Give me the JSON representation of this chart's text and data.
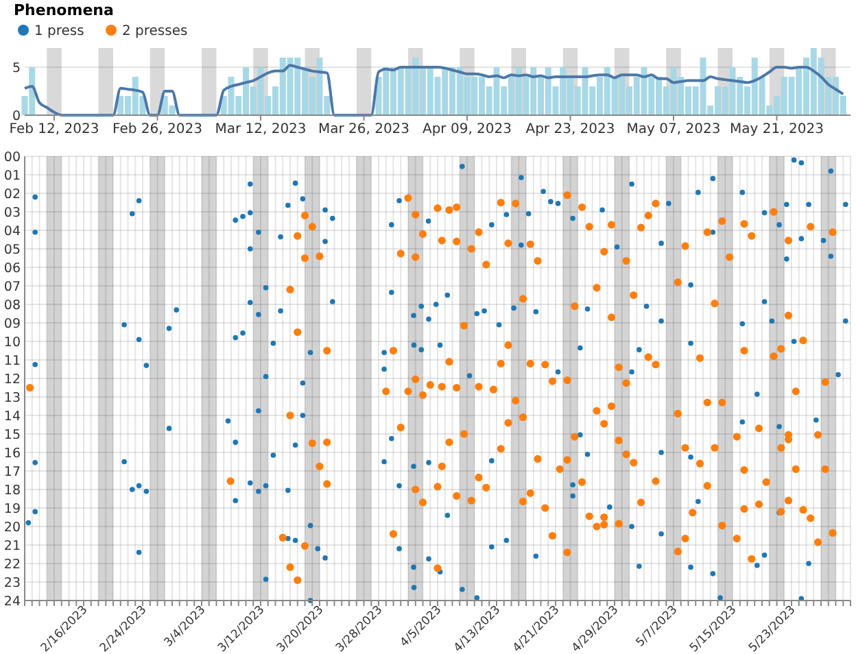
{
  "chart_data": [
    {
      "type": "bar",
      "xlim": [
        "2023-02-08",
        "2023-05-31"
      ],
      "ylim": [
        0,
        7
      ],
      "yticks": [
        0,
        5
      ],
      "grid": "y",
      "xticks": [
        {
          "value": "2023-02-12",
          "label": "Feb 12, 2023"
        },
        {
          "value": "2023-02-26",
          "label": "Feb 26, 2023"
        },
        {
          "value": "2023-03-12",
          "label": "Mar 12, 2023"
        },
        {
          "value": "2023-03-26",
          "label": "Mar 26, 2023"
        },
        {
          "value": "2023-04-09",
          "label": "Apr 09, 2023"
        },
        {
          "value": "2023-04-23",
          "label": "Apr 23, 2023"
        },
        {
          "value": "2023-05-07",
          "label": "May 07, 2023"
        },
        {
          "value": "2023-05-21",
          "label": "May 21, 2023"
        }
      ],
      "bands": [
        {
          "axis": "x",
          "from": "2023-02-11",
          "to": "2023-02-13",
          "color": "#d9d9d9"
        },
        {
          "axis": "x",
          "from": "2023-02-18",
          "to": "2023-02-20",
          "color": "#d9d9d9"
        },
        {
          "axis": "x",
          "from": "2023-02-25",
          "to": "2023-02-27",
          "color": "#d9d9d9"
        },
        {
          "axis": "x",
          "from": "2023-03-04",
          "to": "2023-03-06",
          "color": "#d9d9d9"
        },
        {
          "axis": "x",
          "from": "2023-03-11",
          "to": "2023-03-13",
          "color": "#d9d9d9"
        },
        {
          "axis": "x",
          "from": "2023-03-18",
          "to": "2023-03-20",
          "color": "#d9d9d9"
        },
        {
          "axis": "x",
          "from": "2023-03-25",
          "to": "2023-03-27",
          "color": "#d9d9d9"
        },
        {
          "axis": "x",
          "from": "2023-04-01",
          "to": "2023-04-03",
          "color": "#d9d9d9"
        },
        {
          "axis": "x",
          "from": "2023-04-08",
          "to": "2023-04-10",
          "color": "#d9d9d9"
        },
        {
          "axis": "x",
          "from": "2023-04-15",
          "to": "2023-04-17",
          "color": "#d9d9d9"
        },
        {
          "axis": "x",
          "from": "2023-04-22",
          "to": "2023-04-24",
          "color": "#d9d9d9"
        },
        {
          "axis": "x",
          "from": "2023-04-29",
          "to": "2023-05-01",
          "color": "#d9d9d9"
        },
        {
          "axis": "x",
          "from": "2023-05-06",
          "to": "2023-05-08",
          "color": "#d9d9d9"
        },
        {
          "axis": "x",
          "from": "2023-05-13",
          "to": "2023-05-15",
          "color": "#d9d9d9"
        },
        {
          "axis": "x",
          "from": "2023-05-20",
          "to": "2023-05-22",
          "color": "#d9d9d9"
        },
        {
          "axis": "x",
          "from": "2023-05-27",
          "to": "2023-05-29",
          "color": "#d9d9d9"
        }
      ],
      "x": [
        "2023-02-08",
        "2023-02-09",
        "2023-02-10",
        "2023-02-11",
        "2023-02-12",
        "2023-02-13",
        "2023-02-14",
        "2023-02-15",
        "2023-02-16",
        "2023-02-17",
        "2023-02-18",
        "2023-02-19",
        "2023-02-20",
        "2023-02-21",
        "2023-02-22",
        "2023-02-23",
        "2023-02-24",
        "2023-02-25",
        "2023-02-26",
        "2023-02-27",
        "2023-02-28",
        "2023-03-01",
        "2023-03-02",
        "2023-03-03",
        "2023-03-04",
        "2023-03-05",
        "2023-03-06",
        "2023-03-07",
        "2023-03-08",
        "2023-03-09",
        "2023-03-10",
        "2023-03-11",
        "2023-03-12",
        "2023-03-13",
        "2023-03-14",
        "2023-03-15",
        "2023-03-16",
        "2023-03-17",
        "2023-03-18",
        "2023-03-19",
        "2023-03-20",
        "2023-03-21",
        "2023-03-22",
        "2023-03-23",
        "2023-03-24",
        "2023-03-25",
        "2023-03-26",
        "2023-03-27",
        "2023-03-28",
        "2023-03-29",
        "2023-03-30",
        "2023-03-31",
        "2023-04-01",
        "2023-04-02",
        "2023-04-03",
        "2023-04-04",
        "2023-04-05",
        "2023-04-06",
        "2023-04-07",
        "2023-04-08",
        "2023-04-09",
        "2023-04-10",
        "2023-04-11",
        "2023-04-12",
        "2023-04-13",
        "2023-04-14",
        "2023-04-15",
        "2023-04-16",
        "2023-04-17",
        "2023-04-18",
        "2023-04-19",
        "2023-04-20",
        "2023-04-21",
        "2023-04-22",
        "2023-04-23",
        "2023-04-24",
        "2023-04-25",
        "2023-04-26",
        "2023-04-27",
        "2023-04-28",
        "2023-04-29",
        "2023-04-30",
        "2023-05-01",
        "2023-05-02",
        "2023-05-03",
        "2023-05-04",
        "2023-05-05",
        "2023-05-06",
        "2023-05-07",
        "2023-05-08",
        "2023-05-09",
        "2023-05-10",
        "2023-05-11",
        "2023-05-12",
        "2023-05-13",
        "2023-05-14",
        "2023-05-15",
        "2023-05-16",
        "2023-05-17",
        "2023-05-18",
        "2023-05-19",
        "2023-05-20",
        "2023-05-21",
        "2023-05-22",
        "2023-05-23",
        "2023-05-24",
        "2023-05-25",
        "2023-05-26",
        "2023-05-27",
        "2023-05-28",
        "2023-05-29",
        "2023-05-30"
      ],
      "series": [
        {
          "type": "bar",
          "color": "#a8d8e6",
          "values": [
            2,
            5,
            0,
            0,
            0,
            0,
            0,
            0,
            0,
            0,
            0,
            0,
            0,
            2,
            2,
            4,
            2,
            0,
            0,
            2,
            1,
            0,
            0,
            0,
            0,
            0,
            0,
            2,
            4,
            2,
            5,
            3,
            5,
            2,
            3,
            6,
            6,
            6,
            5,
            4,
            6,
            2,
            0,
            0,
            0,
            0,
            0,
            0,
            4,
            5,
            5,
            5,
            5,
            6,
            5,
            5,
            4,
            5,
            5,
            5,
            4,
            4,
            4,
            3,
            5,
            3,
            4,
            5,
            4,
            5,
            4,
            5,
            3,
            5,
            4,
            3,
            5,
            3,
            4,
            5,
            4,
            4,
            3,
            4,
            5,
            4,
            4,
            3,
            5,
            4,
            3,
            3,
            6,
            1,
            3,
            3,
            5,
            4,
            3,
            6,
            4,
            1,
            2,
            4,
            4,
            5,
            6,
            7,
            6,
            4,
            4,
            2
          ]
        },
        {
          "type": "line",
          "color": "#4c78a8",
          "values": [
            2.8,
            3,
            1.3,
            0.8,
            0.3,
            0,
            0,
            0,
            0,
            0,
            0,
            0,
            0,
            2.8,
            2.7,
            2.6,
            2.4,
            0,
            0,
            2.5,
            2.5,
            0,
            0,
            0,
            0,
            0,
            0,
            2.6,
            3,
            3.2,
            3.4,
            3.6,
            4,
            4.4,
            4.6,
            4.6,
            5.2,
            5,
            4.8,
            4.6,
            4.5,
            4.4,
            0,
            0,
            0,
            0,
            0,
            0,
            4.5,
            4.8,
            4.7,
            5,
            5,
            5,
            5,
            5,
            5,
            4.9,
            4.7,
            4.5,
            4.3,
            4.3,
            4.2,
            4,
            4.1,
            3.9,
            4.2,
            4.1,
            4.2,
            4,
            4.1,
            3.9,
            4,
            4,
            4,
            4,
            4,
            4.1,
            4.2,
            4.2,
            3.9,
            4.2,
            4.2,
            4.2,
            4,
            4.2,
            3.8,
            3.8,
            3.4,
            3.5,
            3.6,
            3.6,
            3.6,
            4,
            3.8,
            3.7,
            3.6,
            3.5,
            3.4,
            3.6,
            4,
            4.5,
            5,
            5,
            4.9,
            5,
            5,
            4.6,
            4,
            3.2,
            2.7,
            2.2
          ]
        }
      ]
    },
    {
      "type": "scatter",
      "legend_title": "Phenomena",
      "legend": "top left",
      "marker": "circle",
      "grid": true,
      "xlim": [
        "2023-02-08",
        "2023-05-31"
      ],
      "ylim": [
        24,
        0
      ],
      "yticks": [
        {
          "value": 0,
          "label": "00"
        },
        {
          "value": 1,
          "label": "01"
        },
        {
          "value": 2,
          "label": "02"
        },
        {
          "value": 3,
          "label": "03"
        },
        {
          "value": 4,
          "label": "04"
        },
        {
          "value": 5,
          "label": "05"
        },
        {
          "value": 6,
          "label": "06"
        },
        {
          "value": 7,
          "label": "07"
        },
        {
          "value": 8,
          "label": "08"
        },
        {
          "value": 9,
          "label": "09"
        },
        10,
        11,
        12,
        13,
        14,
        15,
        16,
        17,
        18,
        19,
        20,
        21,
        22,
        23,
        24
      ],
      "xticks": [
        {
          "value": "2023-02-08",
          "label": null
        },
        {
          "value": "2023-02-09",
          "label": null
        },
        {
          "value": "2023-02-10",
          "label": null
        },
        {
          "value": "2023-02-11",
          "label": null
        },
        {
          "value": "2023-02-12",
          "label": null
        },
        {
          "value": "2023-02-13",
          "label": null
        },
        {
          "value": "2023-02-14",
          "label": null
        },
        {
          "value": "2023-02-15",
          "label": null
        },
        {
          "value": "2023-02-16",
          "label": "2/16/2023"
        },
        {
          "value": "2023-02-17",
          "label": null
        },
        {
          "value": "2023-02-18",
          "label": null
        },
        {
          "value": "2023-02-19",
          "label": null
        },
        {
          "value": "2023-02-20",
          "label": null
        },
        {
          "value": "2023-02-21",
          "label": null
        },
        {
          "value": "2023-02-22",
          "label": null
        },
        {
          "value": "2023-02-23",
          "label": null
        },
        {
          "value": "2023-02-24",
          "label": "2/24/2023"
        },
        {
          "value": "2023-02-25",
          "label": null
        },
        {
          "value": "2023-02-26",
          "label": null
        },
        {
          "value": "2023-02-27",
          "label": null
        },
        {
          "value": "2023-02-28",
          "label": null
        },
        {
          "value": "2023-03-01",
          "label": null
        },
        {
          "value": "2023-03-02",
          "label": null
        },
        {
          "value": "2023-03-03",
          "label": null
        },
        {
          "value": "2023-03-04",
          "label": "3/4/2023"
        },
        {
          "value": "2023-03-05",
          "label": null
        },
        {
          "value": "2023-03-06",
          "label": null
        },
        {
          "value": "2023-03-07",
          "label": null
        },
        {
          "value": "2023-03-08",
          "label": null
        },
        {
          "value": "2023-03-09",
          "label": null
        },
        {
          "value": "2023-03-10",
          "label": null
        },
        {
          "value": "2023-03-11",
          "label": null
        },
        {
          "value": "2023-03-12",
          "label": "3/12/2023"
        },
        {
          "value": "2023-03-13",
          "label": null
        },
        {
          "value": "2023-03-14",
          "label": null
        },
        {
          "value": "2023-03-15",
          "label": null
        },
        {
          "value": "2023-03-16",
          "label": null
        },
        {
          "value": "2023-03-17",
          "label": null
        },
        {
          "value": "2023-03-18",
          "label": null
        },
        {
          "value": "2023-03-19",
          "label": null
        },
        {
          "value": "2023-03-20",
          "label": "3/20/2023"
        },
        {
          "value": "2023-03-21",
          "label": null
        },
        {
          "value": "2023-03-22",
          "label": null
        },
        {
          "value": "2023-03-23",
          "label": null
        },
        {
          "value": "2023-03-24",
          "label": null
        },
        {
          "value": "2023-03-25",
          "label": null
        },
        {
          "value": "2023-03-26",
          "label": null
        },
        {
          "value": "2023-03-27",
          "label": null
        },
        {
          "value": "2023-03-28",
          "label": "3/28/2023"
        },
        {
          "value": "2023-03-29",
          "label": null
        },
        {
          "value": "2023-03-30",
          "label": null
        },
        {
          "value": "2023-03-31",
          "label": null
        },
        {
          "value": "2023-04-01",
          "label": null
        },
        {
          "value": "2023-04-02",
          "label": null
        },
        {
          "value": "2023-04-03",
          "label": null
        },
        {
          "value": "2023-04-04",
          "label": null
        },
        {
          "value": "2023-04-05",
          "label": "4/5/2023"
        },
        {
          "value": "2023-04-06",
          "label": null
        },
        {
          "value": "2023-04-07",
          "label": null
        },
        {
          "value": "2023-04-08",
          "label": null
        },
        {
          "value": "2023-04-09",
          "label": null
        },
        {
          "value": "2023-04-10",
          "label": null
        },
        {
          "value": "2023-04-11",
          "label": null
        },
        {
          "value": "2023-04-12",
          "label": null
        },
        {
          "value": "2023-04-13",
          "label": "4/13/2023"
        },
        {
          "value": "2023-04-14",
          "label": null
        },
        {
          "value": "2023-04-15",
          "label": null
        },
        {
          "value": "2023-04-16",
          "label": null
        },
        {
          "value": "2023-04-17",
          "label": null
        },
        {
          "value": "2023-04-18",
          "label": null
        },
        {
          "value": "2023-04-19",
          "label": null
        },
        {
          "value": "2023-04-20",
          "label": null
        },
        {
          "value": "2023-04-21",
          "label": "4/21/2023"
        },
        {
          "value": "2023-04-22",
          "label": null
        },
        {
          "value": "2023-04-23",
          "label": null
        },
        {
          "value": "2023-04-24",
          "label": null
        },
        {
          "value": "2023-04-25",
          "label": null
        },
        {
          "value": "2023-04-26",
          "label": null
        },
        {
          "value": "2023-04-27",
          "label": null
        },
        {
          "value": "2023-04-28",
          "label": null
        },
        {
          "value": "2023-04-29",
          "label": "4/29/2023"
        },
        {
          "value": "2023-04-30",
          "label": null
        },
        {
          "value": "2023-05-01",
          "label": null
        },
        {
          "value": "2023-05-02",
          "label": null
        },
        {
          "value": "2023-05-03",
          "label": null
        },
        {
          "value": "2023-05-04",
          "label": null
        },
        {
          "value": "2023-05-05",
          "label": null
        },
        {
          "value": "2023-05-06",
          "label": null
        },
        {
          "value": "2023-05-07",
          "label": "5/7/2023"
        },
        {
          "value": "2023-05-08",
          "label": null
        },
        {
          "value": "2023-05-09",
          "label": null
        },
        {
          "value": "2023-05-10",
          "label": null
        },
        {
          "value": "2023-05-11",
          "label": null
        },
        {
          "value": "2023-05-12",
          "label": null
        },
        {
          "value": "2023-05-13",
          "label": null
        },
        {
          "value": "2023-05-14",
          "label": null
        },
        {
          "value": "2023-05-15",
          "label": "5/15/2023"
        },
        {
          "value": "2023-05-16",
          "label": null
        },
        {
          "value": "2023-05-17",
          "label": null
        },
        {
          "value": "2023-05-18",
          "label": null
        },
        {
          "value": "2023-05-19",
          "label": null
        },
        {
          "value": "2023-05-20",
          "label": null
        },
        {
          "value": "2023-05-21",
          "label": null
        },
        {
          "value": "2023-05-22",
          "label": null
        },
        {
          "value": "2023-05-23",
          "label": "5/23/2023"
        },
        {
          "value": "2023-05-24",
          "label": null
        },
        {
          "value": "2023-05-25",
          "label": null
        },
        {
          "value": "2023-05-26",
          "label": null
        },
        {
          "value": "2023-05-27",
          "label": null
        },
        {
          "value": "2023-05-28",
          "label": null
        },
        {
          "value": "2023-05-29",
          "label": null
        },
        {
          "value": "2023-05-30",
          "label": null
        },
        {
          "value": "2023-05-31",
          "label": null
        }
      ],
      "bands": [
        {
          "axis": "x",
          "from": "2023-02-11",
          "to": "2023-02-13",
          "color": "#d3d3d3"
        },
        {
          "axis": "x",
          "from": "2023-02-18",
          "to": "2023-02-20",
          "color": "#d3d3d3"
        },
        {
          "axis": "x",
          "from": "2023-02-25",
          "to": "2023-02-27",
          "color": "#d3d3d3"
        },
        {
          "axis": "x",
          "from": "2023-03-04",
          "to": "2023-03-06",
          "color": "#d3d3d3"
        },
        {
          "axis": "x",
          "from": "2023-03-11",
          "to": "2023-03-13",
          "color": "#d3d3d3"
        },
        {
          "axis": "x",
          "from": "2023-03-18",
          "to": "2023-03-20",
          "color": "#d3d3d3"
        },
        {
          "axis": "x",
          "from": "2023-03-25",
          "to": "2023-03-27",
          "color": "#d3d3d3"
        },
        {
          "axis": "x",
          "from": "2023-04-01",
          "to": "2023-04-03",
          "color": "#d3d3d3"
        },
        {
          "axis": "x",
          "from": "2023-04-08",
          "to": "2023-04-10",
          "color": "#d3d3d3"
        },
        {
          "axis": "x",
          "from": "2023-04-15",
          "to": "2023-04-17",
          "color": "#d3d3d3"
        },
        {
          "axis": "x",
          "from": "2023-04-22",
          "to": "2023-04-24",
          "color": "#d3d3d3"
        },
        {
          "axis": "x",
          "from": "2023-04-29",
          "to": "2023-05-01",
          "color": "#d3d3d3"
        },
        {
          "axis": "x",
          "from": "2023-05-06",
          "to": "2023-05-08",
          "color": "#d3d3d3"
        },
        {
          "axis": "x",
          "from": "2023-05-13",
          "to": "2023-05-15",
          "color": "#d3d3d3"
        },
        {
          "axis": "x",
          "from": "2023-05-20",
          "to": "2023-05-22",
          "color": "#d3d3d3"
        },
        {
          "axis": "x",
          "from": "2023-05-27",
          "to": "2023-05-29",
          "color": "#d3d3d3"
        }
      ],
      "series": [
        {
          "name": "1 press",
          "color": "#1f77b4",
          "x": [
            "2023-02-09T10:00",
            "2023-02-09T10:00",
            "2023-02-09T10:00",
            "2023-02-23T12:00",
            "2023-02-22T14:00",
            "2023-02-21T12:00",
            "2023-02-23T12:00",
            "2023-02-24T12:00",
            "2023-02-27T14:00",
            "2023-02-28T14:00",
            "2023-03-08T14:00",
            "2023-03-09T14:00",
            "2023-03-10T14:00",
            "2023-03-10T14:00",
            "2023-03-10T14:00",
            "2023-03-11T17:00",
            "2023-03-10T14:00",
            "2023-03-11T17:00",
            "2023-03-08T14:00",
            "2023-03-09T14:00",
            "2023-03-12T17:00",
            "2023-03-12T17:00",
            "2023-03-13T17:00",
            "2023-03-14T17:00",
            "2023-03-14T17:00",
            "2023-03-15T17:00",
            "2023-03-16T17:00",
            "2023-03-17T17:00",
            "2023-03-17T17:00",
            "2023-03-18T18:00",
            "2023-03-20T18:00",
            "2023-03-21T18:00",
            "2023-03-20T18:00",
            "2023-03-21T18:00",
            "2023-03-30T19:00",
            "2023-03-29T18:00",
            "2023-04-03T18:00",
            "2023-03-29T18:00",
            "2023-04-01T18:00",
            "2023-04-02T19:00",
            "2023-04-04T19:00",
            "2023-04-03T19:00",
            "2023-04-01T19:00",
            "2023-04-02T19:00",
            "2023-03-28T18:00",
            "2023-03-28T18:00",
            "2023-02-09T10:00",
            "2023-02-09T10:00",
            "2023-02-08T12:00",
            "2023-02-21T12:00",
            "2023-02-22T14:00",
            "2023-02-23T12:00",
            "2023-02-24T12:00",
            "2023-02-23T12:00",
            "2023-02-27T14:00",
            "2023-03-07T14:00",
            "2023-03-08T14:00",
            "2023-03-08T14:00",
            "2023-03-10T14:00",
            "2023-03-11T17:00",
            "2023-03-11T17:00",
            "2023-03-12T17:00",
            "2023-03-12T17:00",
            "2023-03-13T17:00",
            "2023-03-15T17:00",
            "2023-03-15T17:00",
            "2023-03-16T17:00",
            "2023-03-16T17:00",
            "2023-03-17T17:00",
            "2023-03-18T18:00",
            "2023-03-18T18:00",
            "2023-03-19T18:00",
            "2023-03-20T18:00",
            "2023-03-28T18:00",
            "2023-03-29T18:00",
            "2023-04-01T18:00",
            "2023-03-30T19:00",
            "2023-04-03T19:00",
            "2023-03-30T19:00",
            "2023-04-01T18:00",
            "2023-04-01T19:00",
            "2023-04-03T19:00",
            "2023-04-08T08:00",
            "2023-04-16T08:00",
            "2023-04-19T08:00",
            "2023-04-20T08:00",
            "2023-04-21T08:00",
            "2023-04-14T08:00",
            "2023-04-12T08:00",
            "2023-04-17T08:00",
            "2023-04-16T08:00",
            "2023-04-23T08:00",
            "2023-04-27T08:00",
            "2023-05-01T08:00",
            "2023-04-29T08:00",
            "2023-05-05T08:00",
            "2023-05-06T08:00",
            "2023-05-10T08:00",
            "2023-05-12T08:00",
            "2023-05-12T08:00",
            "2023-05-16T08:00",
            "2023-05-19T08:00",
            "2023-05-21T08:00",
            "2023-05-22T08:00",
            "2023-05-23T08:00",
            "2023-05-24T08:00",
            "2023-05-25T08:00",
            "2023-05-28T08:00",
            "2023-05-24T08:00",
            "2023-05-22T08:00",
            "2023-05-27T08:00",
            "2023-05-28T08:00",
            "2023-05-30T08:00",
            "2023-04-06T08:00",
            "2023-04-10T08:00",
            "2023-04-11T08:00",
            "2023-04-13T08:00",
            "2023-04-15T08:00",
            "2023-04-18T08:00",
            "2023-04-25T08:00",
            "2023-05-03T08:00",
            "2023-05-05T08:00",
            "2023-05-09T08:00",
            "2023-05-16T08:00",
            "2023-05-19T08:00",
            "2023-05-20T08:00",
            "2023-05-30T08:00",
            "2023-04-05T08:00",
            "2023-04-24T08:00",
            "2023-05-02T08:00",
            "2023-05-09T08:00",
            "2023-05-23T08:00",
            "2023-04-09T08:00",
            "2023-04-21T08:00",
            "2023-05-01T08:00",
            "2023-05-29T08:00",
            "2023-05-18T08:00",
            "2023-04-05T08:00",
            "2023-04-06T08:00",
            "2023-04-08T08:00",
            "2023-04-10T08:00",
            "2023-04-12T08:00",
            "2023-04-12T08:00",
            "2023-04-14T08:00",
            "2023-04-18T08:00",
            "2023-04-23T08:00",
            "2023-04-23T08:00",
            "2023-04-24T08:00",
            "2023-04-25T08:00",
            "2023-04-28T08:00",
            "2023-05-01T08:00",
            "2023-05-02T08:00",
            "2023-05-05T08:00",
            "2023-05-05T08:00",
            "2023-05-09T08:00",
            "2023-05-10T08:00",
            "2023-05-09T08:00",
            "2023-05-12T08:00",
            "2023-05-13T08:00",
            "2023-05-16T08:00",
            "2023-05-18T08:00",
            "2023-05-19T08:00",
            "2023-05-21T08:00",
            "2023-05-21T08:00",
            "2023-05-24T08:00",
            "2023-05-25T08:00",
            "2023-05-26T08:00"
          ],
          "values": [
            2.2,
            4.1,
            11.25,
            2.4,
            3.1,
            9.1,
            9.9,
            11.3,
            9.3,
            8.3,
            3.45,
            3.25,
            3.05,
            1.5,
            5,
            4.1,
            7.9,
            8.55,
            9.8,
            9.55,
            7.1,
            11.9,
            10.1,
            4.35,
            8.35,
            2.65,
            1.45,
            2.3,
            12.25,
            10.6,
            2.9,
            3.35,
            4.6,
            7.85,
            2.4,
            3.7,
            3.5,
            7.35,
            8.6,
            8.1,
            8,
            8.8,
            10.2,
            10.45,
            10.6,
            11.5,
            16.55,
            19.2,
            19.8,
            16.5,
            18,
            17.8,
            18.1,
            21.4,
            14.7,
            14.3,
            15.45,
            18.6,
            17.65,
            13.75,
            18.1,
            17.8,
            22.85,
            16.15,
            18.05,
            20.65,
            20.75,
            15.6,
            14,
            19.95,
            24,
            21.2,
            21.7,
            16.5,
            15.25,
            16.75,
            17.8,
            16.55,
            21.2,
            22.2,
            23.3,
            21.75,
            0.55,
            1.15,
            1.9,
            2.45,
            2.55,
            3.15,
            3.7,
            3.1,
            4.8,
            3.35,
            2.9,
            1.5,
            4.9,
            4.7,
            2.55,
            1.95,
            1.2,
            4.1,
            1.95,
            3.05,
            3.7,
            2.6,
            0.2,
            0.35,
            2.6,
            0.8,
            4.45,
            5.55,
            4.55,
            5.4,
            2.6,
            7.5,
            8.5,
            8.35,
            9.1,
            8.2,
            8.4,
            8.25,
            8.1,
            8.9,
            6.95,
            9.05,
            7.85,
            8.9,
            8.9,
            10.2,
            10.35,
            10.45,
            10.1,
            10,
            11.85,
            11.65,
            11.65,
            11.8,
            12.85,
            22.45,
            19.4,
            23.4,
            23.85,
            16.45,
            21.1,
            20.75,
            21.6,
            17.75,
            18.35,
            15.05,
            16.1,
            18.95,
            20,
            22.15,
            16,
            20.4,
            16.25,
            18.65,
            22.2,
            22.55,
            23.85,
            14.35,
            22.1,
            21.55,
            14.6,
            19.25,
            23.9,
            22,
            14.25
          ]
        },
        {
          "name": "2 presses",
          "color": "#ff7f0e",
          "x": [
            "2023-02-08T17:00",
            "2023-03-18",
            "2023-03-19",
            "2023-03-17",
            "2023-03-18",
            "2023-03-20",
            "2023-03-16",
            "2023-03-17",
            "2023-03-21",
            "2023-04-01",
            "2023-04-02",
            "2023-04-03",
            "2023-04-05",
            "2023-03-31",
            "2023-04-02",
            "2023-03-30",
            "2023-03-29",
            "2023-04-01",
            "2023-04-02",
            "2023-04-03",
            "2023-04-04",
            "2023-03-07T22:00",
            "2023-03-16",
            "2023-03-19",
            "2023-03-21",
            "2023-03-20",
            "2023-03-21",
            "2023-03-15",
            "2023-03-16",
            "2023-03-17",
            "2023-03-18",
            "2023-03-31",
            "2023-04-02",
            "2023-04-03",
            "2023-04-05",
            "2023-03-30",
            "2023-04-05",
            "2023-04-06T14:00",
            "2023-04-07T14:00",
            "2023-04-13T14:00",
            "2023-04-15T14:00",
            "2023-04-22T14:00",
            "2023-04-24T14:00",
            "2023-05-04T14:00",
            "2023-05-20T14:00",
            "2023-04-05T14:00",
            "2023-04-07T14:00",
            "2023-04-10T14:00",
            "2023-04-09T14:00",
            "2023-04-14T14:00",
            "2023-04-17T14:00",
            "2023-04-25T14:00",
            "2023-04-28T14:00",
            "2023-05-02T14:00",
            "2023-05-03T14:00",
            "2023-05-13T14:00",
            "2023-05-11T14:00",
            "2023-05-16T14:00",
            "2023-05-17T14:00",
            "2023-05-22T14:00",
            "2023-05-25T14:00",
            "2023-05-28T14:00",
            "2023-04-11T14:00",
            "2023-04-18T14:00",
            "2023-04-27T14:00",
            "2023-04-30T14:00",
            "2023-05-08T14:00",
            "2023-05-14T14:00",
            "2023-04-26T14:00",
            "2023-04-16T14:00",
            "2023-04-23T14:00",
            "2023-05-01T14:00",
            "2023-05-07T14:00",
            "2023-05-12T14:00",
            "2023-05-22T14:00",
            "2023-04-08T14:00",
            "2023-04-28T14:00",
            "2023-04-14T14:00",
            "2023-04-06T14:00",
            "2023-04-13T14:00",
            "2023-04-17T14:00",
            "2023-04-19T14:00",
            "2023-05-03T14:00",
            "2023-05-04T14:00",
            "2023-05-10T14:00",
            "2023-05-16T14:00",
            "2023-05-20T14:00",
            "2023-05-21T14:00",
            "2023-05-24T14:00",
            "2023-04-05T14:00",
            "2023-04-07T14:00",
            "2023-04-10T14:00",
            "2023-04-12T14:00",
            "2023-04-20T14:00",
            "2023-04-22T14:00",
            "2023-04-29T14:00",
            "2023-04-30T14:00",
            "2023-04-15T14:00",
            "2023-05-11T14:00",
            "2023-05-13T14:00",
            "2023-05-23T14:00",
            "2023-05-27T14:00",
            "2023-04-14T14:00",
            "2023-04-16T14:00",
            "2023-04-13T14:00",
            "2023-04-08T14:00",
            "2023-04-06T14:00",
            "2023-04-18T14:00",
            "2023-04-22T14:00",
            "2023-04-23T14:00",
            "2023-04-21T14:00",
            "2023-04-24T14:00",
            "2023-04-26T14:00",
            "2023-04-27T14:00",
            "2023-04-28T14:00",
            "2023-04-29T14:00",
            "2023-04-30T14:00",
            "2023-05-01T14:00",
            "2023-04-05T14:00",
            "2023-04-07T14:00",
            "2023-04-10T14:00",
            "2023-04-11T14:00",
            "2023-04-09T14:00",
            "2023-04-16T14:00",
            "2023-04-17T14:00",
            "2023-04-19T14:00",
            "2023-04-25T14:00",
            "2023-04-26T14:00",
            "2023-04-27T14:00",
            "2023-04-27T14:00",
            "2023-04-29T14:00",
            "2023-05-02T14:00",
            "2023-05-04T14:00",
            "2023-04-20T14:00",
            "2023-04-22T14:00",
            "2023-05-07T14:00",
            "2023-05-08T14:00",
            "2023-05-10T14:00",
            "2023-05-11T14:00",
            "2023-05-09T14:00",
            "2023-05-08T14:00",
            "2023-05-07T14:00",
            "2023-05-12T14:00",
            "2023-05-13T14:00",
            "2023-05-15T14:00",
            "2023-05-16T14:00",
            "2023-05-16T14:00",
            "2023-05-15T14:00",
            "2023-05-17T14:00",
            "2023-05-18T14:00",
            "2023-05-18T14:00",
            "2023-05-19T14:00",
            "2023-05-21T14:00",
            "2023-05-21T14:00",
            "2023-05-22T14:00",
            "2023-05-22T14:00",
            "2023-05-22T14:00",
            "2023-05-23T14:00",
            "2023-05-25T14:00",
            "2023-05-26T14:00",
            "2023-05-26T14:00",
            "2023-05-27T14:00",
            "2023-05-28T14:00",
            "2023-05-24T14:00"
          ],
          "values": [
            12.5,
            3.2,
            3.8,
            4.3,
            5.5,
            5.4,
            7.2,
            9.5,
            10.5,
            2.25,
            3.15,
            4.2,
            2.8,
            5.25,
            5.45,
            10.5,
            12.7,
            12.7,
            12.05,
            12.9,
            12.35,
            17.55,
            14,
            15.5,
            15.45,
            16.75,
            17.7,
            20.6,
            22.2,
            22.9,
            21.05,
            14.65,
            18,
            18.7,
            17.85,
            20.4,
            22.25,
            2.9,
            2.75,
            2.5,
            2.55,
            2.1,
            2.75,
            2.55,
            3,
            4.55,
            4.6,
            4.1,
            5,
            4.7,
            4.75,
            3.8,
            3.7,
            3.85,
            3.2,
            3.5,
            4.1,
            3.65,
            4.3,
            4.55,
            3.8,
            4.1,
            5.85,
            5.65,
            5.15,
            5.65,
            4.85,
            5.45,
            7.1,
            7.7,
            8.1,
            7.5,
            6.8,
            7.95,
            8.6,
            9.15,
            8.7,
            10.2,
            11.1,
            11.2,
            11.2,
            11.25,
            10.85,
            11.25,
            10.9,
            10.5,
            10.8,
            10.4,
            9.95,
            12.45,
            12.5,
            12.45,
            12.6,
            12.15,
            12.1,
            11.4,
            12.25,
            13.2,
            13.3,
            13.3,
            12.7,
            12.2,
            14.4,
            14.1,
            15.8,
            15,
            15.45,
            16.35,
            16.4,
            15.15,
            16.9,
            17.6,
            13.75,
            14.45,
            13.5,
            15.35,
            16.1,
            16.55,
            16.75,
            18.35,
            17.35,
            17.9,
            18.6,
            18.65,
            18.2,
            19,
            19.45,
            20,
            19.9,
            19.5,
            19.85,
            18.7,
            17.55,
            20.5,
            21.4,
            13.9,
            15.75,
            16.6,
            17.8,
            19.25,
            20.65,
            21.35,
            15.75,
            19.95,
            15.15,
            16.95,
            19.05,
            20.65,
            21.75,
            14.7,
            18.8,
            17.6,
            15.75,
            19.2,
            15.05,
            15.3,
            18.6,
            16.9,
            19.55,
            15.05,
            20.85,
            16.9,
            20.35,
            19.1
          ]
        }
      ]
    }
  ]
}
